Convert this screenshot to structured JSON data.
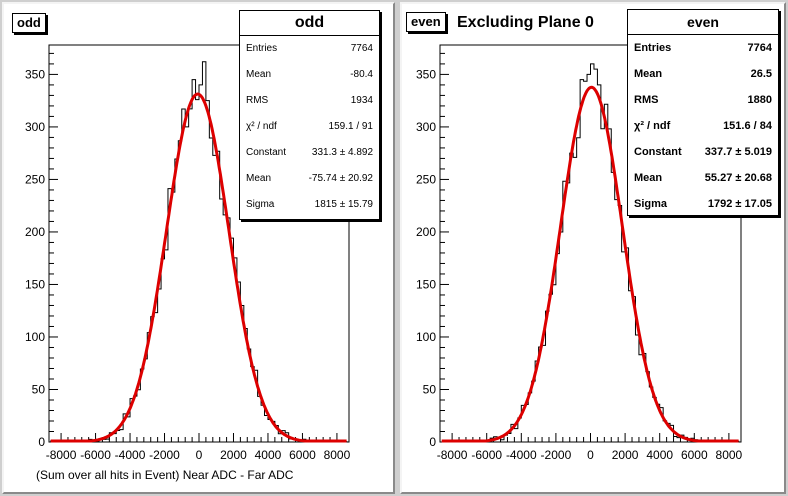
{
  "colors": {
    "fit": "#dd0000",
    "hist": "#000000",
    "canvas": "#cfcfcf"
  },
  "left": {
    "tag": "odd",
    "stats": {
      "title": "odd",
      "rows": [
        {
          "label": "Entries",
          "value": "7764"
        },
        {
          "label": "Mean",
          "value": "-80.4"
        },
        {
          "label": "RMS",
          "value": "1934"
        },
        {
          "label": "χ² / ndf",
          "value": "159.1 / 91"
        },
        {
          "label": "Constant",
          "value": "331.3 ± 4.892"
        },
        {
          "label": "Mean",
          "value": "-75.74 ± 20.92"
        },
        {
          "label": "Sigma",
          "value": "1815 ± 15.79"
        }
      ]
    },
    "xlabel": "(Sum over all hits in Event) Near ADC - Far ADC"
  },
  "right": {
    "tag": "even",
    "title": "Excluding Plane 0",
    "stats": {
      "title": "even",
      "rows": [
        {
          "label": "Entries",
          "value": "7764"
        },
        {
          "label": "Mean",
          "value": "26.5"
        },
        {
          "label": "RMS",
          "value": "1880"
        },
        {
          "label": "χ² / ndf",
          "value": "151.6 / 84"
        },
        {
          "label": "Constant",
          "value": "337.7 ± 5.019"
        },
        {
          "label": "Mean",
          "value": "55.27 ± 20.68"
        },
        {
          "label": "Sigma",
          "value": "1792 ± 17.05"
        }
      ]
    }
  },
  "chart_data": [
    {
      "type": "histogram",
      "name": "odd",
      "xlim": [
        -8700,
        8700
      ],
      "ylim": [
        0,
        378
      ],
      "xticks": [
        -8000,
        -6000,
        -4000,
        -2000,
        0,
        2000,
        4000,
        6000,
        8000
      ],
      "yticks": [
        0,
        50,
        100,
        150,
        200,
        250,
        300,
        350
      ],
      "fit": {
        "function": "gaus",
        "constant": 331.3,
        "mean": -75.74,
        "sigma": 1815
      },
      "peak_counts": [
        {
          "x": -800,
          "y": 300
        },
        {
          "x": -400,
          "y": 345
        },
        {
          "x": 0,
          "y": 340
        },
        {
          "x": 200,
          "y": 362
        },
        {
          "x": 400,
          "y": 325
        }
      ]
    },
    {
      "type": "histogram",
      "name": "even",
      "xlim": [
        -8700,
        8700
      ],
      "ylim": [
        0,
        378
      ],
      "xticks": [
        -8000,
        -6000,
        -4000,
        -2000,
        0,
        2000,
        4000,
        6000,
        8000
      ],
      "yticks": [
        0,
        50,
        100,
        150,
        200,
        250,
        300,
        350
      ],
      "fit": {
        "function": "gaus",
        "constant": 337.7,
        "mean": 55.27,
        "sigma": 1792
      },
      "peak_counts": [
        {
          "x": -600,
          "y": 345
        },
        {
          "x": -200,
          "y": 350
        },
        {
          "x": 0,
          "y": 360
        },
        {
          "x": 200,
          "y": 355
        },
        {
          "x": 400,
          "y": 340
        }
      ]
    }
  ]
}
